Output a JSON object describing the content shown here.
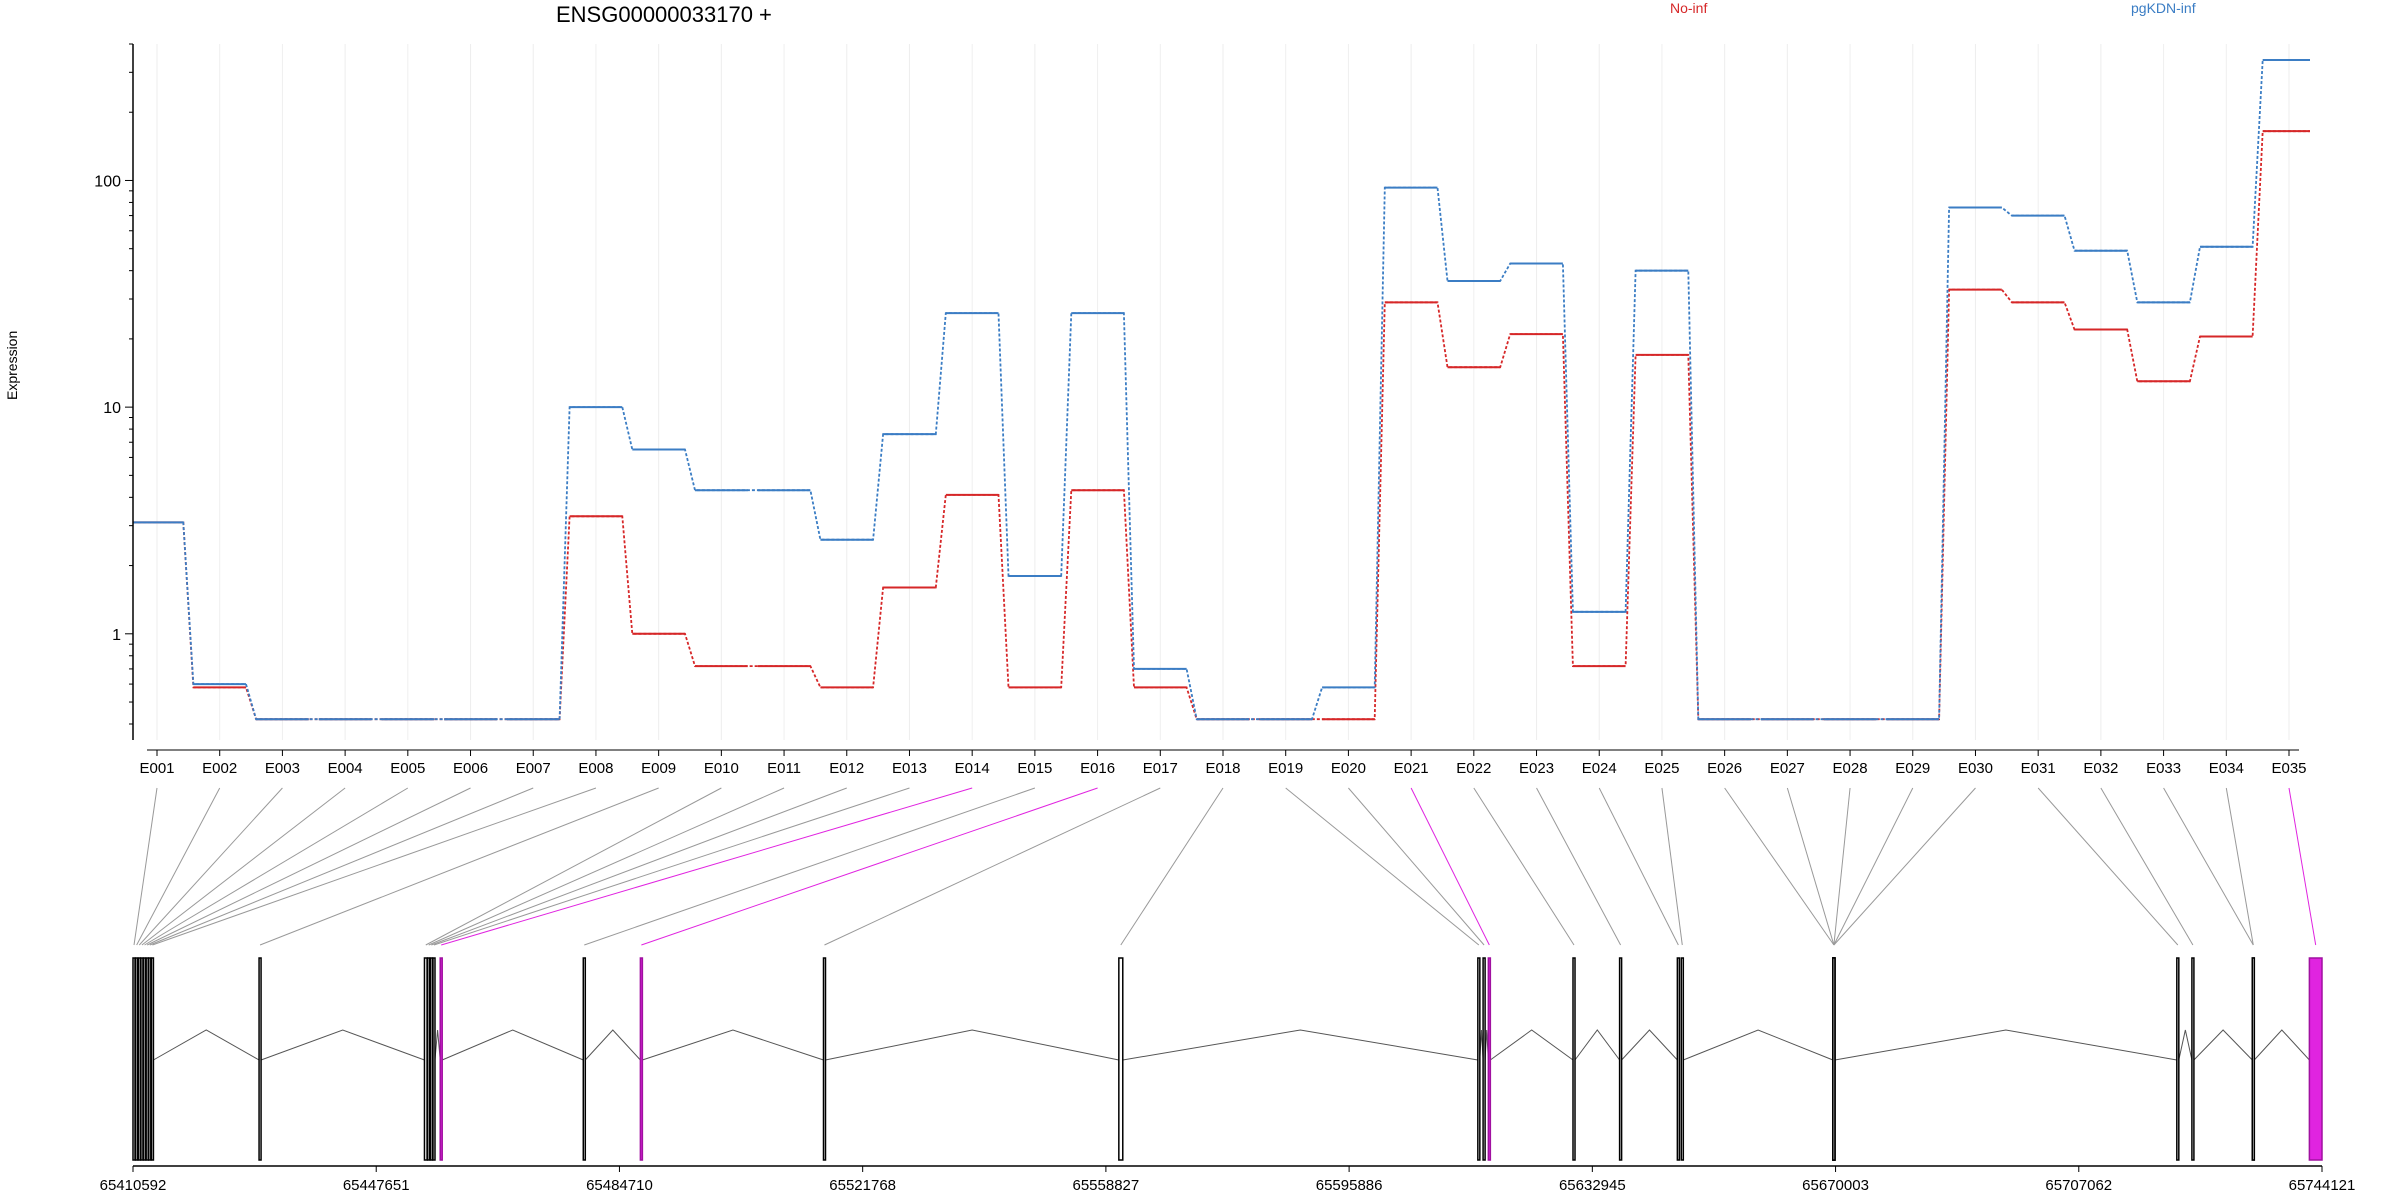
{
  "title": "ENSG00000033170 +",
  "legend": [
    {
      "name": "No-inf",
      "color": "#d62728"
    },
    {
      "name": "pgKDN-inf",
      "color": "#3b7dc4"
    }
  ],
  "chart_data": {
    "type": "line",
    "ylabel": "Expression",
    "yscale": "log",
    "ylim": [
      0.34,
      400
    ],
    "yticks": [
      1,
      10,
      100
    ],
    "categories": [
      "E001",
      "E002",
      "E003",
      "E004",
      "E005",
      "E006",
      "E007",
      "E008",
      "E009",
      "E010",
      "E011",
      "E012",
      "E013",
      "E014",
      "E015",
      "E016",
      "E017",
      "E018",
      "E019",
      "E020",
      "E021",
      "E022",
      "E023",
      "E024",
      "E025",
      "E026",
      "E027",
      "E028",
      "E029",
      "E030",
      "E031",
      "E032",
      "E033",
      "E034",
      "E035"
    ],
    "series": [
      {
        "name": "No-inf",
        "color": "#d62728",
        "values": [
          3.1,
          0.58,
          0.42,
          0.42,
          0.42,
          0.42,
          0.42,
          3.3,
          1.0,
          0.72,
          0.72,
          0.58,
          1.6,
          4.1,
          0.58,
          4.3,
          0.58,
          0.42,
          0.42,
          0.42,
          29,
          15,
          21,
          0.72,
          17,
          0.42,
          0.42,
          0.42,
          0.42,
          33,
          29,
          22,
          13,
          20.5,
          165
        ]
      },
      {
        "name": "pgKDN-inf",
        "color": "#3b7dc4",
        "values": [
          3.1,
          0.6,
          0.42,
          0.42,
          0.42,
          0.42,
          0.42,
          10,
          6.5,
          4.3,
          4.3,
          2.6,
          7.6,
          26,
          1.8,
          26,
          0.7,
          0.42,
          0.42,
          0.58,
          93,
          36,
          43,
          1.25,
          40,
          0.42,
          0.42,
          0.42,
          0.42,
          76,
          70,
          49,
          29,
          51,
          340
        ]
      }
    ],
    "coordinate_axis": {
      "tick_labels": [
        "65410592",
        "65447651",
        "65484710",
        "65521768",
        "65558827",
        "65595886",
        "65632945",
        "65670003",
        "65707062",
        "65744121"
      ],
      "range": [
        65410592,
        65744121
      ]
    },
    "exons": [
      {
        "id": "E001",
        "start": 65410592,
        "end": 65410900
      },
      {
        "id": "E002",
        "start": 65411000,
        "end": 65411300
      },
      {
        "id": "E003",
        "start": 65411400,
        "end": 65411700
      },
      {
        "id": "E004",
        "start": 65411800,
        "end": 65412100
      },
      {
        "id": "E005",
        "start": 65412200,
        "end": 65412500
      },
      {
        "id": "E006",
        "start": 65412600,
        "end": 65412900
      },
      {
        "id": "E007",
        "start": 65413000,
        "end": 65413300
      },
      {
        "id": "E008",
        "start": 65413400,
        "end": 65413700
      },
      {
        "id": "E009",
        "start": 65429800,
        "end": 65430100
      },
      {
        "id": "E010",
        "start": 65455000,
        "end": 65455400
      },
      {
        "id": "E011",
        "start": 65455500,
        "end": 65455800
      },
      {
        "id": "E012",
        "start": 65455900,
        "end": 65456200
      },
      {
        "id": "E013",
        "start": 65456300,
        "end": 65456600
      },
      {
        "id": "E014",
        "start": 65457400,
        "end": 65457700
      },
      {
        "id": "E015",
        "start": 65479200,
        "end": 65479500
      },
      {
        "id": "E016",
        "start": 65487900,
        "end": 65488200
      },
      {
        "id": "E017",
        "start": 65515800,
        "end": 65516100
      },
      {
        "id": "E018",
        "start": 65560800,
        "end": 65561400
      },
      {
        "id": "E019",
        "start": 65615500,
        "end": 65615800
      },
      {
        "id": "E020",
        "start": 65616300,
        "end": 65616600
      },
      {
        "id": "E021",
        "start": 65617100,
        "end": 65617400
      },
      {
        "id": "E022",
        "start": 65630000,
        "end": 65630300
      },
      {
        "id": "E023",
        "start": 65637100,
        "end": 65637400
      },
      {
        "id": "E024",
        "start": 65645900,
        "end": 65646200
      },
      {
        "id": "E025",
        "start": 65646500,
        "end": 65646800
      },
      {
        "id": "E026",
        "start": 65669600,
        "end": 65669900
      },
      {
        "id": "E027",
        "start": 65669600,
        "end": 65669900
      },
      {
        "id": "E028",
        "start": 65669600,
        "end": 65669900
      },
      {
        "id": "E029",
        "start": 65669600,
        "end": 65669900
      },
      {
        "id": "E030",
        "start": 65669600,
        "end": 65669900
      },
      {
        "id": "E031",
        "start": 65722000,
        "end": 65722300
      },
      {
        "id": "E032",
        "start": 65724300,
        "end": 65724600
      },
      {
        "id": "E033",
        "start": 65733500,
        "end": 65733800
      },
      {
        "id": "E034",
        "start": 65733500,
        "end": 65733800
      },
      {
        "id": "E035",
        "start": 65742200,
        "end": 65744121
      }
    ],
    "highlighted_exons": [
      "E014",
      "E016",
      "E021",
      "E035"
    ],
    "highlight_color": "#e024e0",
    "grid": true
  }
}
